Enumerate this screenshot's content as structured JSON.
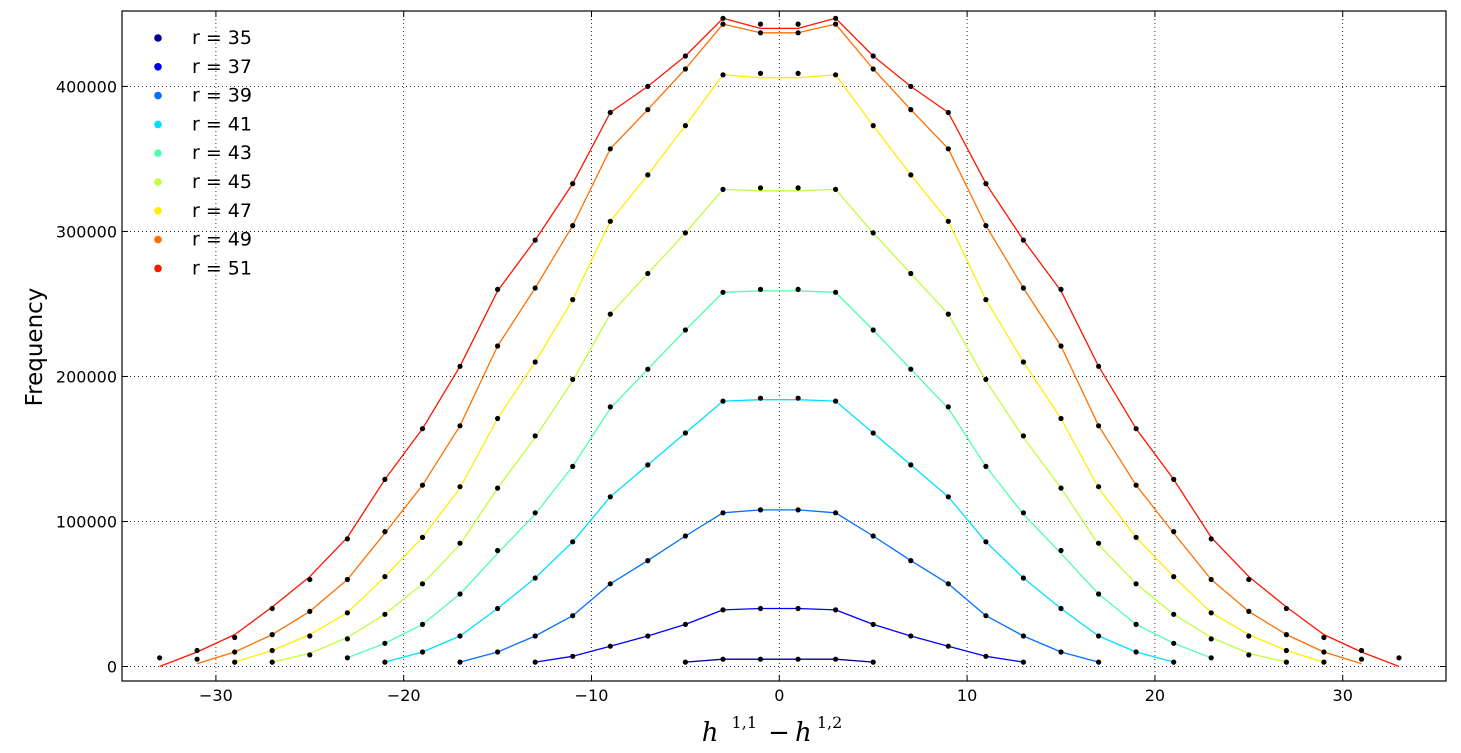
{
  "chart_data": {
    "type": "line",
    "ylabel": "Frequency",
    "xlabel": {
      "h1": "h",
      "sup1": "1,1",
      "minus": "−",
      "h2": "h",
      "sup2": "1,2"
    },
    "xlim": [
      -35,
      35.5
    ],
    "ylim": [
      -10000,
      452000
    ],
    "xticks": [
      -30,
      -20,
      -10,
      0,
      10,
      20,
      30
    ],
    "xtick_labels": [
      "−30",
      "−20",
      "−10",
      "0",
      "10",
      "20",
      "30"
    ],
    "yticks": [
      0,
      100000,
      200000,
      300000,
      400000
    ],
    "ytick_labels": [
      "0",
      "100000",
      "200000",
      "300000",
      "400000"
    ],
    "grid": true,
    "legend_position": "top-left",
    "series": [
      {
        "name": "r  = 35",
        "color": "#00008f",
        "x": [
          -5,
          -3,
          -1,
          1,
          3,
          5
        ],
        "y": [
          3000,
          5000,
          5000,
          5000,
          5000,
          3000
        ]
      },
      {
        "name": "r  = 37",
        "color": "#0000ff",
        "x": [
          -13,
          -11,
          -9,
          -7,
          -5,
          -3,
          -1,
          1,
          3,
          5,
          7,
          9,
          11,
          13
        ],
        "y": [
          3000,
          7000,
          14000,
          21000,
          29000,
          39000,
          40000,
          40000,
          39000,
          29000,
          21000,
          14000,
          7000,
          3000
        ]
      },
      {
        "name": "r  = 39",
        "color": "#0070ff",
        "x": [
          -17,
          -15,
          -13,
          -11,
          -9,
          -7,
          -5,
          -3,
          -1,
          1,
          3,
          5,
          7,
          9,
          11,
          13,
          15,
          17
        ],
        "y": [
          3000,
          10000,
          21000,
          35000,
          57000,
          73000,
          90000,
          106000,
          108000,
          108000,
          106000,
          90000,
          73000,
          57000,
          35000,
          21000,
          10000,
          3000
        ]
      },
      {
        "name": "r  = 41",
        "color": "#00dfff",
        "x": [
          -21,
          -19,
          -17,
          -15,
          -13,
          -11,
          -9,
          -7,
          -5,
          -3,
          -1,
          1,
          3,
          5,
          7,
          9,
          11,
          13,
          15,
          17,
          19,
          21
        ],
        "y": [
          3000,
          10000,
          21000,
          40000,
          61000,
          86000,
          117000,
          139000,
          161000,
          183000,
          184000,
          184000,
          183000,
          161000,
          139000,
          117000,
          86000,
          61000,
          40000,
          21000,
          10000,
          3000
        ]
      },
      {
        "name": "r  = 43",
        "color": "#50ffaf",
        "x": [
          -23,
          -21,
          -19,
          -17,
          -15,
          -13,
          -11,
          -9,
          -7,
          -5,
          -3,
          -1,
          1,
          3,
          5,
          7,
          9,
          11,
          13,
          15,
          17,
          19,
          21,
          23
        ],
        "y": [
          6000,
          16000,
          29000,
          50000,
          78000,
          105000,
          138000,
          178000,
          205000,
          232000,
          258000,
          259000,
          259000,
          258000,
          232000,
          205000,
          178000,
          138000,
          105000,
          78000,
          50000,
          29000,
          16000,
          6000
        ]
      },
      {
        "name": "r  = 45",
        "color": "#bfff3f",
        "x": [
          -27,
          -25,
          -23,
          -21,
          -19,
          -17,
          -15,
          -13,
          -11,
          -9,
          -7,
          -5,
          -3,
          -1,
          1,
          3,
          5,
          7,
          9,
          11,
          13,
          15,
          17,
          19,
          21,
          23,
          25,
          27
        ],
        "y": [
          3000,
          9000,
          20000,
          36000,
          57000,
          84000,
          123000,
          158000,
          197000,
          243000,
          271000,
          299000,
          329000,
          328000,
          328000,
          329000,
          299000,
          271000,
          243000,
          197000,
          158000,
          123000,
          84000,
          57000,
          36000,
          20000,
          9000,
          3000
        ]
      },
      {
        "name": "r  = 47",
        "color": "#ffee00",
        "x": [
          -29,
          -27,
          -25,
          -23,
          -21,
          -19,
          -17,
          -15,
          -13,
          -11,
          -9,
          -7,
          -5,
          -3,
          -1,
          1,
          3,
          5,
          7,
          9,
          11,
          13,
          15,
          17,
          19,
          21,
          23,
          25,
          27,
          29
        ],
        "y": [
          3000,
          11000,
          22000,
          37000,
          62000,
          89000,
          123000,
          171000,
          210000,
          253000,
          307000,
          339000,
          373000,
          408000,
          406000,
          406000,
          408000,
          373000,
          339000,
          307000,
          253000,
          210000,
          171000,
          123000,
          89000,
          62000,
          37000,
          22000,
          11000,
          3000
        ]
      },
      {
        "name": "r  = 49",
        "color": "#ff7000",
        "x": [
          -31,
          -29,
          -27,
          -25,
          -23,
          -21,
          -19,
          -17,
          -15,
          -13,
          -11,
          -9,
          -7,
          -5,
          -3,
          -1,
          1,
          3,
          5,
          7,
          9,
          11,
          13,
          15,
          17,
          19,
          21,
          23,
          25,
          27,
          29,
          31
        ],
        "y": [
          2000,
          10000,
          22000,
          38000,
          60000,
          92000,
          125000,
          166000,
          221000,
          261000,
          304000,
          357000,
          384000,
          412000,
          443000,
          437000,
          437000,
          443000,
          412000,
          384000,
          357000,
          304000,
          261000,
          221000,
          166000,
          125000,
          92000,
          60000,
          38000,
          22000,
          10000,
          2000
        ]
      },
      {
        "name": "r  = 51",
        "color": "#ff1500",
        "x": [
          -33,
          -31,
          -29,
          -27,
          -25,
          -23,
          -21,
          -19,
          -17,
          -15,
          -13,
          -11,
          -9,
          -7,
          -5,
          -3,
          -1,
          1,
          3,
          5,
          7,
          9,
          11,
          13,
          15,
          17,
          19,
          21,
          23,
          25,
          27,
          29,
          31,
          33
        ],
        "y": [
          0,
          10000,
          22000,
          41000,
          62000,
          89000,
          129000,
          164000,
          207000,
          259000,
          294000,
          333000,
          382000,
          400000,
          421000,
          447000,
          440000,
          440000,
          447000,
          421000,
          400000,
          382000,
          333000,
          294000,
          259000,
          207000,
          164000,
          129000,
          89000,
          62000,
          41000,
          22000,
          10000,
          0
        ]
      }
    ],
    "markers": {
      "color": "#000000",
      "points": [
        [
          -5,
          3000
        ],
        [
          -3,
          5000
        ],
        [
          -1,
          5000
        ],
        [
          1,
          5000
        ],
        [
          3,
          5000
        ],
        [
          5,
          3000
        ],
        [
          -13,
          3000
        ],
        [
          -11,
          7000
        ],
        [
          -9,
          14000
        ],
        [
          -7,
          21000
        ],
        [
          -5,
          29000
        ],
        [
          -3,
          39000
        ],
        [
          -1,
          40000
        ],
        [
          1,
          40000
        ],
        [
          3,
          39000
        ],
        [
          5,
          29000
        ],
        [
          7,
          21000
        ],
        [
          9,
          14000
        ],
        [
          11,
          7000
        ],
        [
          13,
          3000
        ],
        [
          -17,
          3000
        ],
        [
          -15,
          10000
        ],
        [
          -13,
          21000
        ],
        [
          -11,
          35000
        ],
        [
          -9,
          57000
        ],
        [
          -7,
          73000
        ],
        [
          -5,
          90000
        ],
        [
          -3,
          106000
        ],
        [
          -1,
          108000
        ],
        [
          1,
          108000
        ],
        [
          3,
          106000
        ],
        [
          5,
          90000
        ],
        [
          7,
          73000
        ],
        [
          9,
          57000
        ],
        [
          11,
          35000
        ],
        [
          13,
          21000
        ],
        [
          15,
          10000
        ],
        [
          17,
          3000
        ],
        [
          -21,
          3000
        ],
        [
          -19,
          10000
        ],
        [
          -17,
          21000
        ],
        [
          -15,
          40000
        ],
        [
          -13,
          61000
        ],
        [
          -11,
          86000
        ],
        [
          -9,
          117000
        ],
        [
          -7,
          139000
        ],
        [
          -5,
          161000
        ],
        [
          -3,
          183000
        ],
        [
          -1,
          185000
        ],
        [
          1,
          185000
        ],
        [
          3,
          183000
        ],
        [
          5,
          161000
        ],
        [
          7,
          139000
        ],
        [
          9,
          117000
        ],
        [
          11,
          86000
        ],
        [
          13,
          61000
        ],
        [
          15,
          40000
        ],
        [
          17,
          21000
        ],
        [
          19,
          10000
        ],
        [
          21,
          3000
        ],
        [
          -23,
          6000
        ],
        [
          -21,
          16000
        ],
        [
          -19,
          29000
        ],
        [
          -17,
          50000
        ],
        [
          -15,
          80000
        ],
        [
          -13,
          106000
        ],
        [
          -11,
          138000
        ],
        [
          -9,
          179000
        ],
        [
          -7,
          205000
        ],
        [
          -5,
          232000
        ],
        [
          -3,
          258000
        ],
        [
          -1,
          260000
        ],
        [
          1,
          260000
        ],
        [
          3,
          258000
        ],
        [
          5,
          232000
        ],
        [
          7,
          205000
        ],
        [
          9,
          179000
        ],
        [
          11,
          138000
        ],
        [
          13,
          106000
        ],
        [
          15,
          80000
        ],
        [
          17,
          50000
        ],
        [
          19,
          29000
        ],
        [
          21,
          16000
        ],
        [
          23,
          6000
        ],
        [
          -27,
          3000
        ],
        [
          -25,
          8000
        ],
        [
          -23,
          19000
        ],
        [
          -21,
          36000
        ],
        [
          -19,
          57000
        ],
        [
          -17,
          85000
        ],
        [
          -15,
          123000
        ],
        [
          -13,
          159000
        ],
        [
          -11,
          198000
        ],
        [
          -9,
          243000
        ],
        [
          -7,
          271000
        ],
        [
          -5,
          299000
        ],
        [
          -3,
          329000
        ],
        [
          -1,
          330000
        ],
        [
          1,
          330000
        ],
        [
          3,
          329000
        ],
        [
          5,
          299000
        ],
        [
          7,
          271000
        ],
        [
          9,
          243000
        ],
        [
          11,
          198000
        ],
        [
          13,
          159000
        ],
        [
          15,
          123000
        ],
        [
          17,
          85000
        ],
        [
          19,
          57000
        ],
        [
          21,
          36000
        ],
        [
          23,
          19000
        ],
        [
          25,
          8000
        ],
        [
          27,
          3000
        ],
        [
          -29,
          3000
        ],
        [
          -27,
          11000
        ],
        [
          -25,
          21000
        ],
        [
          -23,
          37000
        ],
        [
          -21,
          62000
        ],
        [
          -19,
          89000
        ],
        [
          -17,
          124000
        ],
        [
          -15,
          171000
        ],
        [
          -13,
          210000
        ],
        [
          -11,
          253000
        ],
        [
          -9,
          307000
        ],
        [
          -7,
          339000
        ],
        [
          -5,
          373000
        ],
        [
          -3,
          408000
        ],
        [
          -1,
          409000
        ],
        [
          1,
          409000
        ],
        [
          3,
          408000
        ],
        [
          5,
          373000
        ],
        [
          7,
          339000
        ],
        [
          9,
          307000
        ],
        [
          11,
          253000
        ],
        [
          13,
          210000
        ],
        [
          15,
          171000
        ],
        [
          17,
          124000
        ],
        [
          19,
          89000
        ],
        [
          21,
          62000
        ],
        [
          23,
          37000
        ],
        [
          25,
          21000
        ],
        [
          27,
          11000
        ],
        [
          29,
          3000
        ],
        [
          -31,
          5000
        ],
        [
          -29,
          10000
        ],
        [
          -27,
          22000
        ],
        [
          -25,
          38000
        ],
        [
          -23,
          60000
        ],
        [
          -21,
          93000
        ],
        [
          -19,
          125000
        ],
        [
          -17,
          166000
        ],
        [
          -15,
          221000
        ],
        [
          -13,
          261000
        ],
        [
          -11,
          304000
        ],
        [
          -9,
          357000
        ],
        [
          -7,
          384000
        ],
        [
          -5,
          412000
        ],
        [
          -3,
          443000
        ],
        [
          -1,
          437000
        ],
        [
          1,
          437000
        ],
        [
          3,
          443000
        ],
        [
          5,
          412000
        ],
        [
          7,
          384000
        ],
        [
          9,
          357000
        ],
        [
          11,
          304000
        ],
        [
          13,
          261000
        ],
        [
          15,
          221000
        ],
        [
          17,
          166000
        ],
        [
          19,
          125000
        ],
        [
          21,
          93000
        ],
        [
          23,
          60000
        ],
        [
          25,
          38000
        ],
        [
          27,
          22000
        ],
        [
          29,
          10000
        ],
        [
          31,
          5000
        ],
        [
          -33,
          6000
        ],
        [
          -31,
          11000
        ],
        [
          -29,
          20000
        ],
        [
          -27,
          40000
        ],
        [
          -25,
          60000
        ],
        [
          -23,
          88000
        ],
        [
          -21,
          129000
        ],
        [
          -19,
          164000
        ],
        [
          -17,
          207000
        ],
        [
          -15,
          260000
        ],
        [
          -13,
          294000
        ],
        [
          -11,
          333000
        ],
        [
          -9,
          382000
        ],
        [
          -7,
          400000
        ],
        [
          -5,
          421000
        ],
        [
          -3,
          447000
        ],
        [
          -1,
          443000
        ],
        [
          1,
          443000
        ],
        [
          3,
          447000
        ],
        [
          5,
          421000
        ],
        [
          7,
          400000
        ],
        [
          9,
          382000
        ],
        [
          11,
          333000
        ],
        [
          13,
          294000
        ],
        [
          15,
          260000
        ],
        [
          17,
          207000
        ],
        [
          19,
          164000
        ],
        [
          21,
          129000
        ],
        [
          23,
          88000
        ],
        [
          25,
          60000
        ],
        [
          27,
          40000
        ],
        [
          29,
          20000
        ],
        [
          31,
          11000
        ],
        [
          33,
          6000
        ]
      ]
    }
  }
}
